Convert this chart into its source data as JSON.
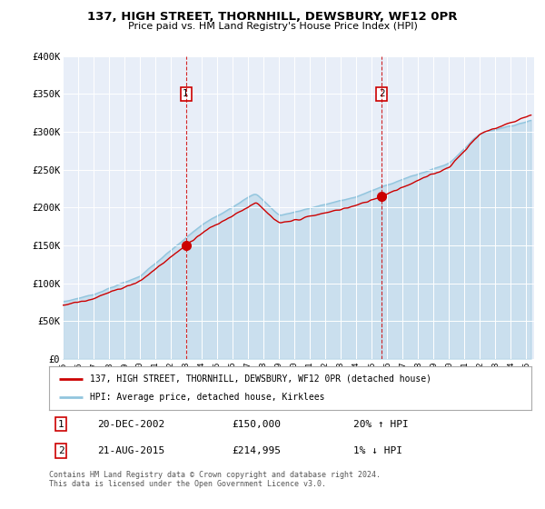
{
  "title": "137, HIGH STREET, THORNHILL, DEWSBURY, WF12 0PR",
  "subtitle": "Price paid vs. HM Land Registry's House Price Index (HPI)",
  "ylabel_ticks": [
    "£0",
    "£50K",
    "£100K",
    "£150K",
    "£200K",
    "£250K",
    "£300K",
    "£350K",
    "£400K"
  ],
  "ytick_vals": [
    0,
    50000,
    100000,
    150000,
    200000,
    250000,
    300000,
    350000,
    400000
  ],
  "ylim": [
    0,
    400000
  ],
  "hpi_color": "#92c5de",
  "price_color": "#cc0000",
  "vline_color": "#cc0000",
  "background_color": "#e8eef8",
  "legend1": "137, HIGH STREET, THORNHILL, DEWSBURY, WF12 0PR (detached house)",
  "legend2": "HPI: Average price, detached house, Kirklees",
  "annotation1_num": "1",
  "annotation1_date": "20-DEC-2002",
  "annotation1_price": "£150,000",
  "annotation1_hpi": "20% ↑ HPI",
  "annotation2_num": "2",
  "annotation2_date": "21-AUG-2015",
  "annotation2_price": "£214,995",
  "annotation2_hpi": "1% ↓ HPI",
  "footer": "Contains HM Land Registry data © Crown copyright and database right 2024.\nThis data is licensed under the Open Government Licence v3.0.",
  "sale1_year": 2002.97,
  "sale1_price": 150000,
  "sale2_year": 2015.64,
  "sale2_price": 214995
}
